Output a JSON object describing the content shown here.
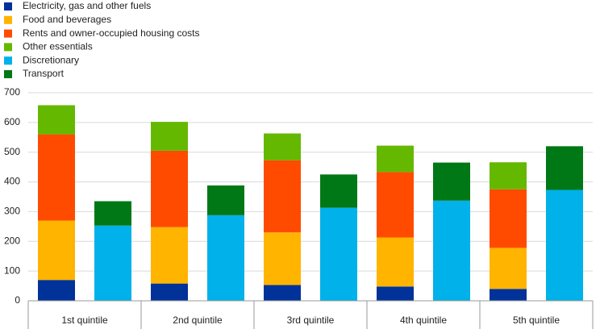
{
  "chart_data": {
    "type": "stacked_bar",
    "categories": [
      "1st quintile",
      "2nd quintile",
      "3rd quintile",
      "4th quintile",
      "5th quintile"
    ],
    "series": [
      {
        "name": "Electricity, gas and other fuels",
        "color": "#003299",
        "stack": 1,
        "values": [
          70,
          58,
          53,
          48,
          40
        ]
      },
      {
        "name": "Food and beverages",
        "color": "#ffb400",
        "stack": 1,
        "values": [
          200,
          190,
          177,
          165,
          138
        ]
      },
      {
        "name": "Rents and owner-occupied housing costs",
        "color": "#ff4b00",
        "stack": 1,
        "values": [
          290,
          257,
          243,
          220,
          197
        ]
      },
      {
        "name": "Other essentials",
        "color": "#65b800",
        "stack": 1,
        "values": [
          98,
          97,
          90,
          89,
          91
        ]
      },
      {
        "name": "Discretionary",
        "color": "#00b1ea",
        "stack": 2,
        "values": [
          253,
          288,
          313,
          337,
          373
        ]
      },
      {
        "name": "Transport",
        "color": "#007816",
        "stack": 2,
        "values": [
          82,
          100,
          112,
          128,
          147
        ]
      }
    ],
    "ylim": [
      0,
      700
    ],
    "yticks": [
      0,
      100,
      200,
      300,
      400,
      500,
      600,
      700
    ],
    "grid": true
  }
}
